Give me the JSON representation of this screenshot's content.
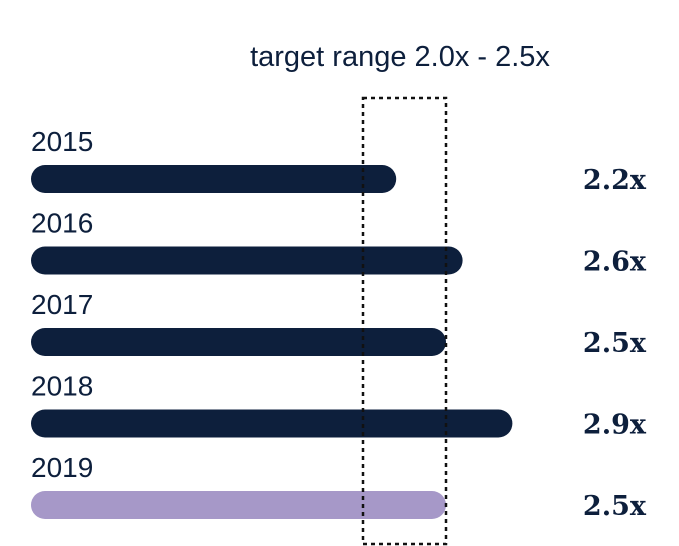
{
  "chart_data": {
    "type": "bar",
    "orientation": "horizontal",
    "title": "target range 2.0x - 2.5x",
    "target_range": [
      2.0,
      2.5
    ],
    "categories": [
      "2015",
      "2016",
      "2017",
      "2018",
      "2019"
    ],
    "values": [
      2.2,
      2.6,
      2.5,
      2.9,
      2.5
    ],
    "value_labels": [
      "2.2x",
      "2.6x",
      "2.5x",
      "2.9x",
      "2.5x"
    ],
    "xlim": [
      0,
      2.9
    ],
    "grid": false,
    "legend": "none",
    "colors": {
      "actual": "#0d1f3c",
      "highlight": "#a698c8",
      "text": "#0d1f3c",
      "target_box": "#111111"
    },
    "highlight_index": 4
  }
}
